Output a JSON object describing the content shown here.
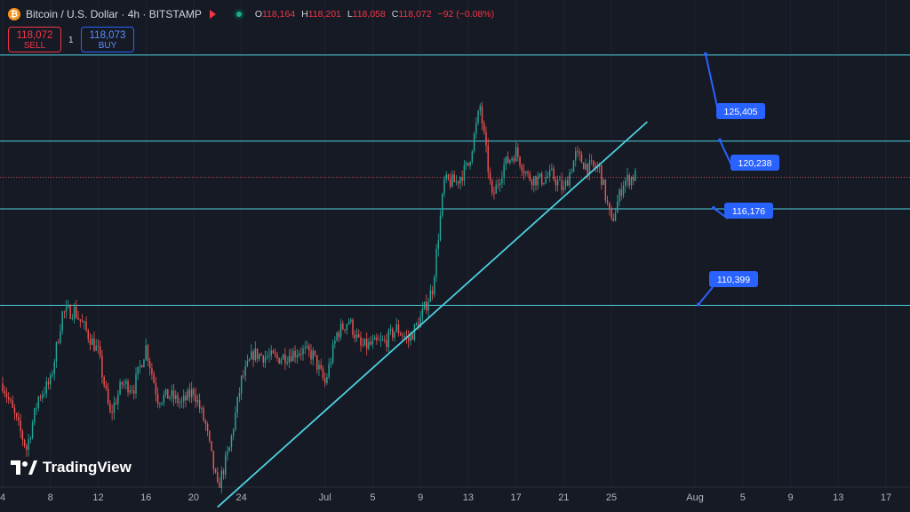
{
  "header": {
    "symbol": "Bitcoin / U.S. Dollar · 4h · BITSTAMP",
    "open_label": "O",
    "open": "118,164",
    "high_label": "H",
    "high": "118,201",
    "low_label": "L",
    "low": "118,058",
    "close_label": "C",
    "close": "118,072",
    "change": "−92 (−0.08%)"
  },
  "trade": {
    "sell_price": "118,072",
    "sell_label": "SELL",
    "spread": "1",
    "buy_price": "118,073",
    "buy_label": "BUY"
  },
  "logo_text": "TradingView",
  "colors": {
    "up": "#26a69a",
    "down": "#ef5350",
    "level": "#4dd0e1",
    "badge": "#2962ff",
    "background": "#161a25"
  },
  "chart_data": {
    "type": "candlestick",
    "title": "",
    "x_axis_ticks": [
      "4",
      "8",
      "12",
      "16",
      "20",
      "24",
      "Jul",
      "5",
      "9",
      "13",
      "17",
      "21",
      "25",
      "Aug",
      "5",
      "9",
      "13",
      "17"
    ],
    "ylim": [
      99500,
      128700
    ],
    "price_levels": [
      {
        "label": "125,405",
        "value": 125405
      },
      {
        "label": "120,238",
        "value": 120238
      },
      {
        "label": "116,176",
        "value": 116176
      },
      {
        "label": "110,399",
        "value": 110399
      }
    ],
    "current_price": 118072,
    "trendline": {
      "from": [
        "2025-06-22",
        98300
      ],
      "to": [
        "2025-07-28",
        121400
      ]
    },
    "price_path": [
      [
        "2025-06-04",
        105700
      ],
      [
        "2025-06-06",
        101800
      ],
      [
        "2025-06-07",
        104900
      ],
      [
        "2025-06-08",
        105800
      ],
      [
        "2025-06-09",
        109900
      ],
      [
        "2025-06-10",
        110100
      ],
      [
        "2025-06-12",
        107600
      ],
      [
        "2025-06-13",
        103800
      ],
      [
        "2025-06-14",
        105700
      ],
      [
        "2025-06-15",
        105500
      ],
      [
        "2025-06-16",
        107900
      ],
      [
        "2025-06-17",
        104800
      ],
      [
        "2025-06-18",
        105000
      ],
      [
        "2025-06-19",
        104500
      ],
      [
        "2025-06-20",
        105300
      ],
      [
        "2025-06-21",
        103200
      ],
      [
        "2025-06-22",
        99400
      ],
      [
        "2025-06-23",
        101800
      ],
      [
        "2025-06-24",
        105900
      ],
      [
        "2025-06-25",
        107500
      ],
      [
        "2025-06-27",
        107200
      ],
      [
        "2025-06-29",
        107700
      ],
      [
        "2025-06-30",
        107400
      ],
      [
        "2025-07-01",
        105700
      ],
      [
        "2025-07-02",
        108700
      ],
      [
        "2025-07-03",
        109500
      ],
      [
        "2025-07-04",
        107900
      ],
      [
        "2025-07-06",
        108200
      ],
      [
        "2025-07-07",
        109000
      ],
      [
        "2025-07-08",
        108300
      ],
      [
        "2025-07-09",
        109600
      ],
      [
        "2025-07-10",
        111400
      ],
      [
        "2025-07-11",
        117800
      ],
      [
        "2025-07-12",
        117800
      ],
      [
        "2025-07-13",
        118800
      ],
      [
        "2025-07-14",
        122300
      ],
      [
        "2025-07-15",
        116800
      ],
      [
        "2025-07-16",
        118800
      ],
      [
        "2025-07-17",
        119600
      ],
      [
        "2025-07-18",
        118100
      ],
      [
        "2025-07-19",
        117900
      ],
      [
        "2025-07-20",
        118200
      ],
      [
        "2025-07-21",
        117300
      ],
      [
        "2025-07-22",
        119400
      ],
      [
        "2025-07-23",
        118700
      ],
      [
        "2025-07-24",
        118600
      ],
      [
        "2025-07-25",
        115300
      ],
      [
        "2025-07-26",
        117800
      ],
      [
        "2025-07-27",
        118164
      ]
    ]
  }
}
